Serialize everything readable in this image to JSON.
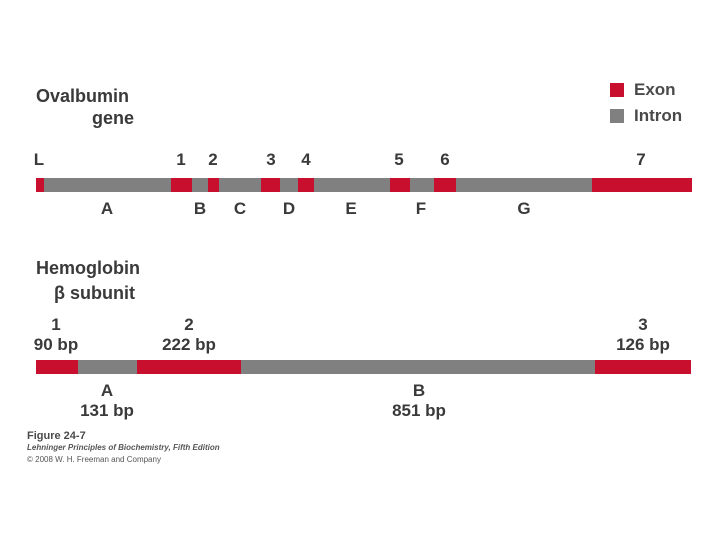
{
  "legend": {
    "exon": "Exon",
    "intron": "Intron"
  },
  "colors": {
    "exon": "#c8102e",
    "intron": "#808080"
  },
  "ovalbumin": {
    "title_line1": "Ovalbumin",
    "title_line2": "gene",
    "exons": [
      "L",
      "1",
      "2",
      "3",
      "4",
      "5",
      "6",
      "7"
    ],
    "introns": [
      "A",
      "B",
      "C",
      "D",
      "E",
      "F",
      "G"
    ]
  },
  "hemoglobin": {
    "title_line1": "Hemoglobin",
    "title_line2": "β subunit",
    "exons": [
      {
        "num": "1",
        "size": "90 bp"
      },
      {
        "num": "2",
        "size": "222 bp"
      },
      {
        "num": "3",
        "size": "126 bp"
      }
    ],
    "introns": [
      {
        "name": "A",
        "size": "131 bp"
      },
      {
        "name": "B",
        "size": "851 bp"
      }
    ]
  },
  "credit": {
    "figure": "Figure 24-7",
    "book": "Lehninger Principles of Biochemistry, Fifth Edition",
    "copyright": "© 2008 W. H. Freeman and Company"
  }
}
